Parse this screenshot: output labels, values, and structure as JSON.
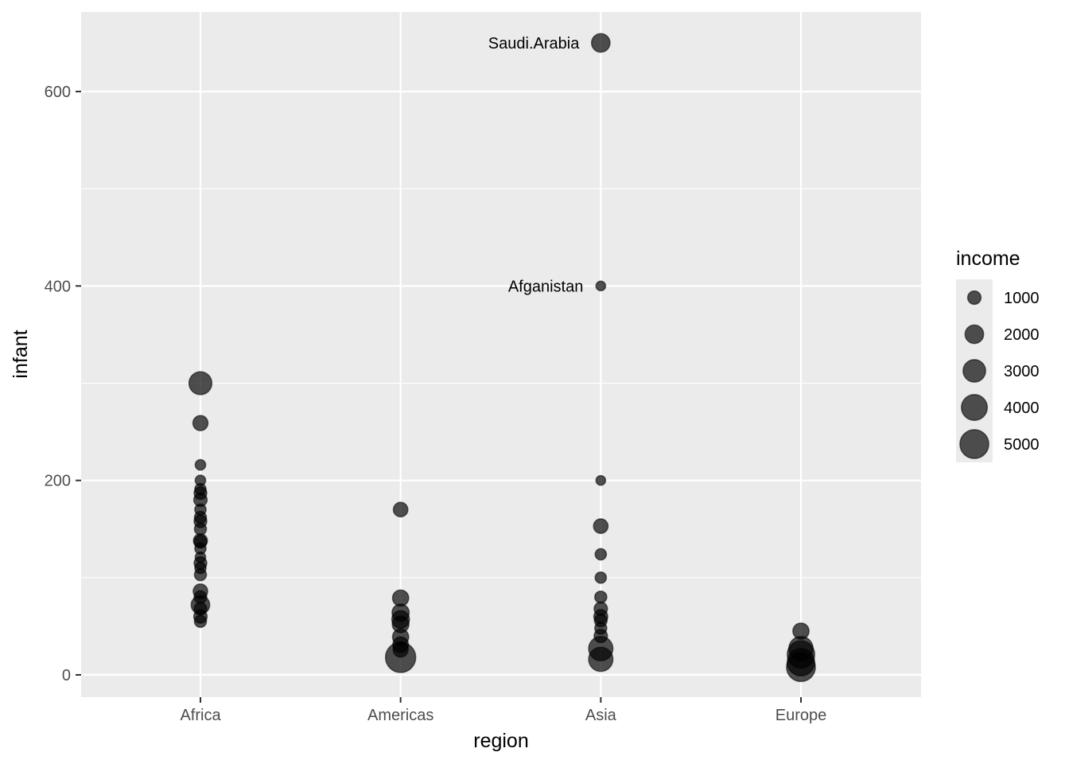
{
  "chart_data": {
    "type": "scatter",
    "title": "",
    "xlabel": "region",
    "ylabel": "infant",
    "categories": [
      "Africa",
      "Americas",
      "Asia",
      "Europe"
    ],
    "ylim": [
      -45,
      680
    ],
    "yticks": [
      0,
      200,
      400,
      600
    ],
    "grid": true,
    "legend": {
      "title": "income",
      "position": "right",
      "entries": [
        {
          "label": "1000",
          "value": 1000
        },
        {
          "label": "2000",
          "value": 2000
        },
        {
          "label": "3000",
          "value": 3000
        },
        {
          "label": "4000",
          "value": 4000
        },
        {
          "label": "5000",
          "value": 5000
        }
      ]
    },
    "annotations": [
      {
        "label": "Saudi.Arabia",
        "region": "Asia",
        "infant": 650
      },
      {
        "label": "Afganistan",
        "region": "Asia",
        "infant": 400
      }
    ],
    "points": [
      {
        "region": "Africa",
        "infant": 300,
        "income": 3100
      },
      {
        "region": "Africa",
        "infant": 259,
        "income": 1300
      },
      {
        "region": "Africa",
        "infant": 216,
        "income": 600
      },
      {
        "region": "Africa",
        "infant": 200,
        "income": 600
      },
      {
        "region": "Africa",
        "infant": 191,
        "income": 700
      },
      {
        "region": "Africa",
        "infant": 187,
        "income": 900
      },
      {
        "region": "Africa",
        "infant": 180,
        "income": 1000
      },
      {
        "region": "Africa",
        "infant": 170,
        "income": 700
      },
      {
        "region": "Africa",
        "infant": 162,
        "income": 800
      },
      {
        "region": "Africa",
        "infant": 158,
        "income": 900
      },
      {
        "region": "Africa",
        "infant": 150,
        "income": 800
      },
      {
        "region": "Africa",
        "infant": 138,
        "income": 1100
      },
      {
        "region": "Africa",
        "infant": 137,
        "income": 900
      },
      {
        "region": "Africa",
        "infant": 130,
        "income": 700
      },
      {
        "region": "Africa",
        "infant": 121,
        "income": 600
      },
      {
        "region": "Africa",
        "infant": 115,
        "income": 900
      },
      {
        "region": "Africa",
        "infant": 110,
        "income": 700
      },
      {
        "region": "Africa",
        "infant": 103,
        "income": 800
      },
      {
        "region": "Africa",
        "infant": 86,
        "income": 1200
      },
      {
        "region": "Africa",
        "infant": 80,
        "income": 900
      },
      {
        "region": "Africa",
        "infant": 72,
        "income": 2000
      },
      {
        "region": "Africa",
        "infant": 68,
        "income": 900
      },
      {
        "region": "Africa",
        "infant": 60,
        "income": 1000
      },
      {
        "region": "Africa",
        "infant": 55,
        "income": 800
      },
      {
        "region": "Americas",
        "infant": 170,
        "income": 1200
      },
      {
        "region": "Americas",
        "infant": 79,
        "income": 1500
      },
      {
        "region": "Americas",
        "infant": 64,
        "income": 1700
      },
      {
        "region": "Americas",
        "infant": 57,
        "income": 1800
      },
      {
        "region": "Americas",
        "infant": 52,
        "income": 1600
      },
      {
        "region": "Americas",
        "infant": 39,
        "income": 1500
      },
      {
        "region": "Americas",
        "infant": 31,
        "income": 1400
      },
      {
        "region": "Americas",
        "infant": 26,
        "income": 1300
      },
      {
        "region": "Americas",
        "infant": 18,
        "income": 5500
      },
      {
        "region": "Asia",
        "infant": 650,
        "income": 2000
      },
      {
        "region": "Asia",
        "infant": 400,
        "income": 500
      },
      {
        "region": "Asia",
        "infant": 200,
        "income": 500
      },
      {
        "region": "Asia",
        "infant": 153,
        "income": 1200
      },
      {
        "region": "Asia",
        "infant": 124,
        "income": 700
      },
      {
        "region": "Asia",
        "infant": 100,
        "income": 700
      },
      {
        "region": "Asia",
        "infant": 80,
        "income": 800
      },
      {
        "region": "Asia",
        "infant": 68,
        "income": 1000
      },
      {
        "region": "Asia",
        "infant": 60,
        "income": 1100
      },
      {
        "region": "Asia",
        "infant": 56,
        "income": 900
      },
      {
        "region": "Asia",
        "infant": 48,
        "income": 800
      },
      {
        "region": "Asia",
        "infant": 40,
        "income": 1000
      },
      {
        "region": "Asia",
        "infant": 27,
        "income": 3500
      },
      {
        "region": "Asia",
        "infant": 16,
        "income": 3500
      },
      {
        "region": "Europe",
        "infant": 45,
        "income": 1500
      },
      {
        "region": "Europe",
        "infant": 27,
        "income": 3500
      },
      {
        "region": "Europe",
        "infant": 21,
        "income": 4500
      },
      {
        "region": "Europe",
        "infant": 13,
        "income": 4500
      },
      {
        "region": "Europe",
        "infant": 8,
        "income": 5000
      }
    ]
  }
}
